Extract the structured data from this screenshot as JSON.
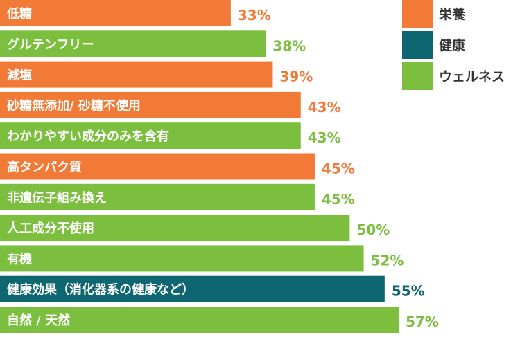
{
  "chart_data": {
    "type": "bar",
    "orientation": "horizontal",
    "xlim": [
      0,
      57
    ],
    "categories": [
      "低糖",
      "グルテンフリー",
      "減塩",
      "砂糖無添加/ 砂糖不使用",
      "わかりやすい成分のみを含有",
      "高タンパク質",
      "非遺伝子組み換え",
      "人工成分不使用",
      "有機",
      "健康効果（消化器系の健康など）",
      "自然 / 天然"
    ],
    "values": [
      33,
      38,
      39,
      43,
      43,
      45,
      45,
      50,
      52,
      55,
      57
    ],
    "value_labels": [
      "33%",
      "38%",
      "39%",
      "43%",
      "43%",
      "45%",
      "45%",
      "50%",
      "52%",
      "55%",
      "57%"
    ],
    "groups": [
      "栄養",
      "ウェルネス",
      "栄養",
      "栄養",
      "ウェルネス",
      "栄養",
      "ウェルネス",
      "ウェルネス",
      "ウェルネス",
      "健康",
      "ウェルネス"
    ],
    "legend": [
      {
        "name": "栄養",
        "color": "#F07A36"
      },
      {
        "name": "健康",
        "color": "#0E6670"
      },
      {
        "name": "ウェルネス",
        "color": "#7CBF3F"
      }
    ],
    "legend_position": "top-right",
    "grid": false
  }
}
